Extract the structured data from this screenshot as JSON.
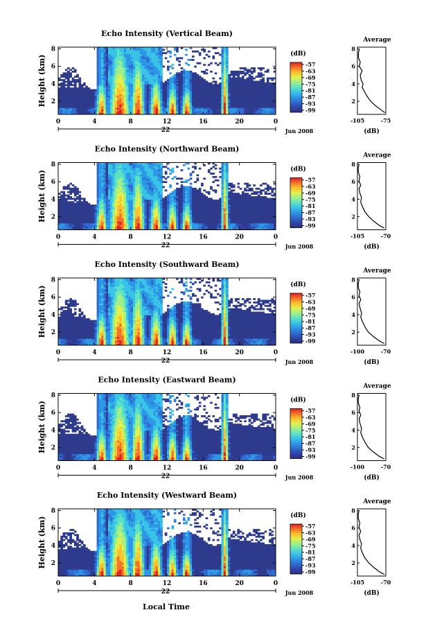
{
  "figure": {
    "x_axis_label": "Local Time",
    "date_label": "Jun 2008",
    "day_label": "22",
    "colorbar_unit": "(dB)",
    "average_title": "Average",
    "average_xlabel": "(dB)",
    "colors": {
      "background_echo": "#2e3a8c",
      "colormap": [
        "#2c2f86",
        "#2f45a8",
        "#2f6bd0",
        "#2d97e6",
        "#39c3e7",
        "#5ee2c4",
        "#9ff08a",
        "#e2f04c",
        "#fbc02d",
        "#f4722a",
        "#dd2222"
      ]
    }
  },
  "chart_data": [
    {
      "type": "heatmap",
      "title": "Echo Intensity (Vertical Beam)",
      "ylabel": "Height (km)",
      "x_ticks": [
        "0",
        "4",
        "8",
        "12",
        "16",
        "20",
        "0"
      ],
      "y_ticks": [
        "2",
        "4",
        "6",
        "8"
      ],
      "xlim": [
        0,
        24
      ],
      "ylim": [
        0.5,
        8.2
      ],
      "colorbar_ticks": [
        "-57",
        "-63",
        "-69",
        "-75",
        "-81",
        "-87",
        "-93",
        "-99"
      ],
      "average": {
        "xticks": [
          "-105",
          "-75"
        ],
        "yticks": [
          "2",
          "4",
          "6",
          "8"
        ],
        "xlim": [
          -105,
          -75
        ],
        "values": [
          [
            -76,
            0.7
          ],
          [
            -80,
            1.0
          ],
          [
            -86,
            1.5
          ],
          [
            -91,
            2.0
          ],
          [
            -95,
            2.6
          ],
          [
            -98,
            3.2
          ],
          [
            -100,
            3.6
          ],
          [
            -99,
            4.0
          ],
          [
            -101,
            4.4
          ],
          [
            -102,
            5.0
          ],
          [
            -100,
            5.5
          ],
          [
            -103,
            6.0
          ],
          [
            -102,
            6.5
          ],
          [
            -104,
            7.0
          ],
          [
            -104,
            7.5
          ],
          [
            -103,
            8.0
          ]
        ]
      }
    },
    {
      "type": "heatmap",
      "title": "Echo Intensity (Northward Beam)",
      "ylabel": "Height (km)",
      "x_ticks": [
        "0",
        "4",
        "8",
        "12",
        "16",
        "20",
        "0"
      ],
      "y_ticks": [
        "2",
        "4",
        "6",
        "8"
      ],
      "xlim": [
        0,
        24
      ],
      "ylim": [
        0.5,
        8.2
      ],
      "colorbar_ticks": [
        "-57",
        "-63",
        "-69",
        "-75",
        "-81",
        "-87",
        "-93",
        "-99"
      ],
      "average": {
        "xticks": [
          "-105",
          "-70"
        ],
        "yticks": [
          "2",
          "4",
          "6",
          "8"
        ],
        "xlim": [
          -105,
          -70
        ],
        "values": [
          [
            -72,
            0.7
          ],
          [
            -78,
            1.0
          ],
          [
            -85,
            1.5
          ],
          [
            -91,
            2.0
          ],
          [
            -96,
            2.6
          ],
          [
            -99,
            3.2
          ],
          [
            -101,
            3.7
          ],
          [
            -100,
            4.2
          ],
          [
            -102,
            4.7
          ],
          [
            -103,
            5.2
          ],
          [
            -101,
            5.6
          ],
          [
            -103,
            6.1
          ],
          [
            -102,
            6.6
          ],
          [
            -104,
            7.1
          ],
          [
            -104,
            7.6
          ],
          [
            -103,
            8.0
          ]
        ]
      }
    },
    {
      "type": "heatmap",
      "title": "Echo Intensity (Southward Beam)",
      "ylabel": "Height (km)",
      "x_ticks": [
        "0",
        "4",
        "8",
        "12",
        "16",
        "20",
        "0"
      ],
      "y_ticks": [
        "2",
        "4",
        "6",
        "8"
      ],
      "xlim": [
        0,
        24
      ],
      "ylim": [
        0.5,
        8.2
      ],
      "colorbar_ticks": [
        "-57",
        "-63",
        "-69",
        "-75",
        "-81",
        "-87",
        "-93",
        "-99"
      ],
      "average": {
        "xticks": [
          "-100",
          "-70"
        ],
        "yticks": [
          "2",
          "4",
          "6",
          "8"
        ],
        "xlim": [
          -104,
          -70
        ],
        "values": [
          [
            -72,
            0.7
          ],
          [
            -78,
            1.0
          ],
          [
            -85,
            1.5
          ],
          [
            -91,
            2.0
          ],
          [
            -95,
            2.6
          ],
          [
            -98,
            3.2
          ],
          [
            -100,
            3.7
          ],
          [
            -99,
            4.2
          ],
          [
            -101,
            4.8
          ],
          [
            -102,
            5.3
          ],
          [
            -100,
            5.7
          ],
          [
            -102,
            6.2
          ],
          [
            -101,
            6.6
          ],
          [
            -103,
            7.1
          ],
          [
            -103,
            7.6
          ],
          [
            -102,
            8.0
          ]
        ]
      }
    },
    {
      "type": "heatmap",
      "title": "Echo Intensity (Eastward Beam)",
      "ylabel": "Height (km)",
      "x_ticks": [
        "0",
        "4",
        "8",
        "12",
        "16",
        "20",
        "0"
      ],
      "y_ticks": [
        "2",
        "4",
        "6",
        "8"
      ],
      "xlim": [
        0,
        24
      ],
      "ylim": [
        0.5,
        8.2
      ],
      "colorbar_ticks": [
        "-57",
        "-63",
        "-69",
        "-75",
        "-81",
        "-87",
        "-93",
        "-99"
      ],
      "average": {
        "xticks": [
          "-100",
          "-70"
        ],
        "yticks": [
          "2",
          "4",
          "6",
          "8"
        ],
        "xlim": [
          -104,
          -70
        ],
        "values": [
          [
            -72,
            0.7
          ],
          [
            -78,
            1.0
          ],
          [
            -85,
            1.5
          ],
          [
            -91,
            2.0
          ],
          [
            -95,
            2.6
          ],
          [
            -98,
            3.2
          ],
          [
            -100,
            3.7
          ],
          [
            -99,
            4.2
          ],
          [
            -101,
            4.8
          ],
          [
            -102,
            5.3
          ],
          [
            -100,
            5.7
          ],
          [
            -102,
            6.2
          ],
          [
            -101,
            6.6
          ],
          [
            -103,
            7.1
          ],
          [
            -103,
            7.6
          ],
          [
            -102,
            8.0
          ]
        ]
      }
    },
    {
      "type": "heatmap",
      "title": "Echo Intensity (Westward Beam)",
      "ylabel": "Height (km)",
      "x_ticks": [
        "0",
        "4",
        "8",
        "12",
        "16",
        "20",
        "0"
      ],
      "y_ticks": [
        "2",
        "4",
        "6",
        "8"
      ],
      "xlim": [
        0,
        24
      ],
      "ylim": [
        0.5,
        8.2
      ],
      "colorbar_ticks": [
        "-57",
        "-63",
        "-69",
        "-75",
        "-81",
        "-87",
        "-93",
        "-99"
      ],
      "average": {
        "xticks": [
          "-105",
          "-70"
        ],
        "yticks": [
          "2",
          "4",
          "6",
          "8"
        ],
        "xlim": [
          -105,
          -70
        ],
        "values": [
          [
            -72,
            0.7
          ],
          [
            -78,
            1.0
          ],
          [
            -85,
            1.5
          ],
          [
            -91,
            2.0
          ],
          [
            -96,
            2.6
          ],
          [
            -99,
            3.2
          ],
          [
            -101,
            3.7
          ],
          [
            -100,
            4.2
          ],
          [
            -102,
            4.7
          ],
          [
            -103,
            5.2
          ],
          [
            -101,
            5.6
          ],
          [
            -103,
            6.1
          ],
          [
            -102,
            6.6
          ],
          [
            -104,
            7.1
          ],
          [
            -104,
            7.6
          ],
          [
            -103,
            8.0
          ]
        ]
      }
    }
  ]
}
